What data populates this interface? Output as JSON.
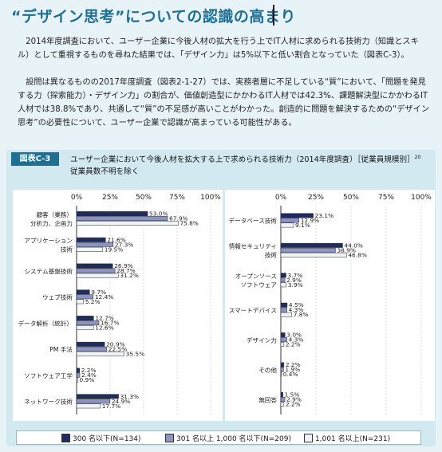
{
  "page": {
    "title": "“デザイン思考”についての認識の高まり",
    "paragraphs": [
      "2014年度調査において、ユーザー企業に今後人材の拡大を行う上でIT人材に求められる技術力（知識とスキル）として重視するものを尋ねた結果では、「デザイン力」は5%以下と低い割合となっていた（図表C-3）。",
      "設問は異なるものの2017年度調査（図表2-1-27）では、実務者層に不足している“質”において、「問題を発見する力（探索能力）・デザイン力」の割合が、価値創造型にかかわるIT人材では42.3%、課題解決型にかかわるIT人材では38.8%であり、共通して“質”の不足感が高いことがわかった。創造的に問題を解決するための“デザイン思考”の必要性について、ユーザー企業で認識が高まっている可能性がある。"
    ]
  },
  "figure": {
    "label": "図表C-3",
    "title": "ユーザー企業において今後人材を拡大する上で求められる技術力（2014年度調査）［従業員規模別］",
    "title_sup": "20",
    "subtitle": "従業員数不明を除く",
    "legend": [
      {
        "label": "300 名以下(N=134)",
        "color": "#1f2d5c"
      },
      {
        "label": "301 名以上 1,000 名以下(N=209)",
        "color": "#8f93bf"
      },
      {
        "label": "1,001 名以上(N=231)",
        "color": "#eef3f6"
      }
    ]
  },
  "chart_data": [
    {
      "type": "bar",
      "orientation": "horizontal",
      "categories": [
        "顧客（業務）分析力、企画力",
        "アプリケーション技術",
        "システム基盤技術",
        "ウェブ技術",
        "データ解析（統計）",
        "PM 手法",
        "ソフトウェア工学",
        "ネットワーク技術"
      ],
      "category_lines": [
        [
          "顧客（業務）",
          "分析力、企画力"
        ],
        [
          "アプリケーション",
          "技術"
        ],
        [
          "システム基盤技術"
        ],
        [
          "ウェブ技術"
        ],
        [
          "データ解析（統計）"
        ],
        [
          "PM 手法"
        ],
        [
          "ソフトウェア工学"
        ],
        [
          "ネットワーク技術"
        ]
      ],
      "series": [
        {
          "name": "300 名以下(N=134)",
          "values": [
            53.0,
            21.6,
            26.9,
            9.7,
            12.7,
            20.9,
            2.2,
            31.3
          ]
        },
        {
          "name": "301 名以上 1,000 名以下(N=209)",
          "values": [
            67.9,
            27.3,
            28.7,
            12.4,
            16.7,
            22.5,
            2.4,
            24.9
          ]
        },
        {
          "name": "1,001 名以上(N=231)",
          "values": [
            75.8,
            19.5,
            31.2,
            5.2,
            12.6,
            35.5,
            0.9,
            17.7
          ]
        }
      ],
      "value_labels": [
        [
          "53.0%",
          "21.6%",
          "26.9%",
          "9.7%",
          "12.7%",
          "20.9%",
          "2.2%",
          "31.3%"
        ],
        [
          "67.9%",
          "27.3%",
          "28.7%",
          "12.4%",
          "16.7%",
          "22.5%",
          "2.4%",
          "24.9%"
        ],
        [
          "75.8%",
          "19.5%",
          "31.2%",
          "5.2%",
          "12.6%",
          "35.5%",
          "0.9%",
          "17.7%"
        ]
      ],
      "xticks": [
        "0%",
        "25%",
        "50%",
        "75%",
        "100%"
      ],
      "xlim": [
        0,
        100
      ]
    },
    {
      "type": "bar",
      "orientation": "horizontal",
      "categories": [
        "データベース技術",
        "情報セキュリティ技術",
        "オープンソースソフトウェア",
        "スマートデバイス",
        "デザイン力",
        "その他",
        "無回答"
      ],
      "category_lines": [
        [
          "データベース技術"
        ],
        [
          "情報セキュリティ",
          "技術"
        ],
        [
          "オープンソース",
          "ソフトウェア"
        ],
        [
          "スマートデバイス"
        ],
        [
          "デザイン力"
        ],
        [
          "その他"
        ],
        [
          "無回答"
        ]
      ],
      "series": [
        {
          "name": "300 名以下(N=134)",
          "values": [
            23.1,
            44.0,
            3.7,
            4.5,
            3.0,
            2.2,
            1.5
          ]
        },
        {
          "name": "301 名以上 1,000 名以下(N=209)",
          "values": [
            12.9,
            38.9,
            2.9,
            4.3,
            4.3,
            1.9,
            2.9
          ]
        },
        {
          "name": "1,001 名以上(N=231)",
          "values": [
            9.1,
            46.8,
            3.9,
            7.8,
            2.2,
            0.4,
            2.2
          ]
        }
      ],
      "value_labels": [
        [
          "23.1%",
          "44.0%",
          "3.7%",
          "4.5%",
          "3.0%",
          "2.2%",
          "1.5%"
        ],
        [
          "12.9%",
          "38.9%",
          "2.9%",
          "4.3%",
          "4.3%",
          "1.9%",
          "2.9%"
        ],
        [
          "9.1%",
          "46.8%",
          "3.9%",
          "7.8%",
          "2.2%",
          "0.4%",
          "2.2%"
        ]
      ],
      "xticks": [
        "0%",
        "25%",
        "50%",
        "75%",
        "100%"
      ],
      "xlim": [
        0,
        100
      ]
    }
  ]
}
